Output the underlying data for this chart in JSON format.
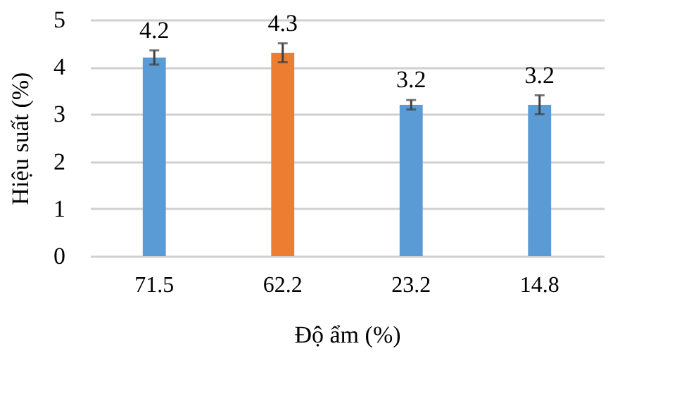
{
  "chart_data": {
    "type": "bar",
    "xlabel": "Độ ẩm (%)",
    "ylabel": "Hiệu suất (%)",
    "categories": [
      "71.5",
      "62.2",
      "23.2",
      "14.8"
    ],
    "values": [
      4.2,
      4.3,
      3.2,
      3.2
    ],
    "colors": [
      "#5b9bd5",
      "#ed7d31",
      "#5b9bd5",
      "#5b9bd5"
    ],
    "errors": [
      0.15,
      0.2,
      0.1,
      0.2
    ],
    "data_labels": true,
    "ylim": [
      0,
      5
    ],
    "yticks": [
      0,
      1,
      2,
      3,
      4,
      5
    ],
    "grid": "y"
  }
}
